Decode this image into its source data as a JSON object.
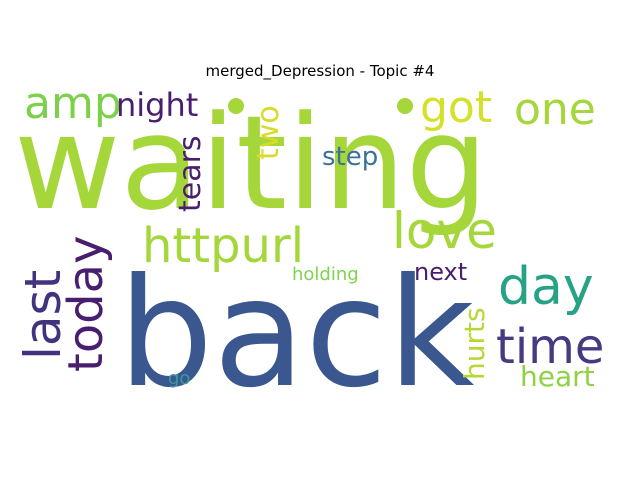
{
  "title": "merged_Depression - Topic #4",
  "chart_data": {
    "type": "wordcloud",
    "title": "merged_Depression - Topic #4",
    "words": [
      {
        "text": "waiting",
        "weight": 1.0,
        "color": "#a5d63a",
        "orientation": "horizontal"
      },
      {
        "text": "back",
        "weight": 0.97,
        "color": "#3a5790",
        "orientation": "horizontal"
      },
      {
        "text": "httpurl",
        "weight": 0.46,
        "color": "#a5d63a",
        "orientation": "horizontal"
      },
      {
        "text": "love",
        "weight": 0.42,
        "color": "#a5d63a",
        "orientation": "horizontal"
      },
      {
        "text": "time",
        "weight": 0.4,
        "color": "#463a80",
        "orientation": "horizontal"
      },
      {
        "text": "day",
        "weight": 0.39,
        "color": "#26a285",
        "orientation": "horizontal"
      },
      {
        "text": "last",
        "weight": 0.39,
        "color": "#43327e",
        "orientation": "vertical"
      },
      {
        "text": "today",
        "weight": 0.39,
        "color": "#4a1e6e",
        "orientation": "vertical"
      },
      {
        "text": "one",
        "weight": 0.38,
        "color": "#a5d63a",
        "orientation": "horizontal"
      },
      {
        "text": "amp",
        "weight": 0.37,
        "color": "#7dd14a",
        "orientation": "horizontal"
      },
      {
        "text": "got",
        "weight": 0.34,
        "color": "#d3e128",
        "orientation": "horizontal"
      },
      {
        "text": "night",
        "weight": 0.3,
        "color": "#4a1e6e",
        "orientation": "horizontal"
      },
      {
        "text": "tears",
        "weight": 0.22,
        "color": "#4a1e6e",
        "orientation": "vertical"
      },
      {
        "text": "hurts",
        "weight": 0.22,
        "color": "#b5d832",
        "orientation": "vertical"
      },
      {
        "text": "heart",
        "weight": 0.22,
        "color": "#8fd244",
        "orientation": "horizontal"
      },
      {
        "text": "two",
        "weight": 0.2,
        "color": "#d7dc2a",
        "orientation": "vertical"
      },
      {
        "text": "step",
        "weight": 0.2,
        "color": "#3b7295",
        "orientation": "horizontal"
      },
      {
        "text": "next",
        "weight": 0.18,
        "color": "#4a1e6e",
        "orientation": "horizontal"
      },
      {
        "text": "holding",
        "weight": 0.14,
        "color": "#7fd34e",
        "orientation": "horizontal"
      },
      {
        "text": "go",
        "weight": 0.13,
        "color": "#3b9a9c",
        "orientation": "horizontal"
      }
    ],
    "dots": [
      {
        "color": "#a5d63a"
      },
      {
        "color": "#a5d63a"
      }
    ]
  }
}
